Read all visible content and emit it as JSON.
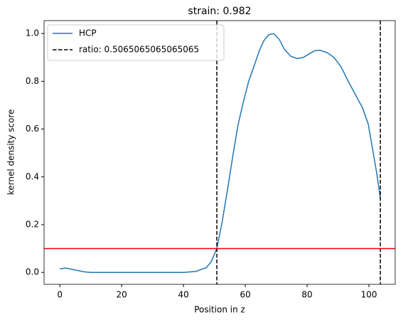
{
  "chart_data": {
    "type": "line",
    "title": "strain: 0.982",
    "xlabel": "Position in z",
    "ylabel": "kernel density score",
    "series": [
      {
        "name": "HCP",
        "color": "#1f77b4",
        "x": [
          0,
          2,
          5,
          8,
          10,
          20,
          30,
          40,
          44,
          47.4,
          49,
          50.8,
          52.5,
          54.3,
          56,
          57.7,
          59.5,
          61.1,
          63,
          64.6,
          66,
          67.6,
          69.2,
          71,
          72.6,
          74.7,
          76.8,
          78.8,
          80.7,
          82.5,
          84.1,
          86.5,
          88.7,
          91,
          93.3,
          95.6,
          97.9,
          99.8,
          101.4,
          102.6,
          103.7
        ],
        "values": [
          0.015,
          0.018,
          0.01,
          0.002,
          0,
          0,
          0,
          0,
          0.004,
          0.02,
          0.045,
          0.1,
          0.21,
          0.35,
          0.49,
          0.62,
          0.72,
          0.8,
          0.87,
          0.93,
          0.97,
          0.995,
          1.0,
          0.975,
          0.935,
          0.905,
          0.895,
          0.9,
          0.915,
          0.928,
          0.93,
          0.92,
          0.9,
          0.86,
          0.8,
          0.745,
          0.69,
          0.62,
          0.5,
          0.41,
          0.31
        ]
      }
    ],
    "vlines": {
      "name": "ratio: 0.5065065065065065",
      "color": "#000000",
      "x": [
        50.8,
        103.7
      ]
    },
    "hline": {
      "y": 0.1,
      "color": "#ff0000"
    },
    "xlim": [
      -5.1,
      108.5
    ],
    "ylim": [
      -0.05,
      1.054
    ],
    "xticks": [
      0,
      20,
      40,
      60,
      80,
      100
    ],
    "yticks": [
      {
        "value": 0,
        "label": "0.0"
      },
      {
        "value": 0.2,
        "label": "0.2"
      },
      {
        "value": 0.4,
        "label": "0.4"
      },
      {
        "value": 0.6,
        "label": "0.6"
      },
      {
        "value": 0.8,
        "label": "0.8"
      },
      {
        "value": 1,
        "label": "1.0"
      }
    ],
    "legend": "upper left",
    "grid": false
  }
}
